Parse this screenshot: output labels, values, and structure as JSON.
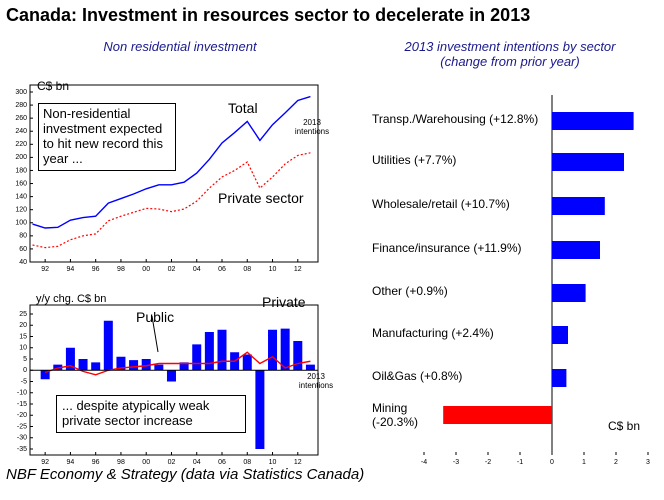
{
  "title": "Canada: Investment in resources sector to decelerate in 2013",
  "source": "NBF Economy & Strategy (data via Statistics Canada)",
  "chart_data": [
    {
      "type": "line",
      "subtitle": "Non residential investment",
      "ylabel": "C$ bn",
      "x": [
        1991,
        1992,
        1993,
        1994,
        1995,
        1996,
        1997,
        1998,
        1999,
        2000,
        2001,
        2002,
        2003,
        2004,
        2005,
        2006,
        2007,
        2008,
        2009,
        2010,
        2011,
        2012,
        2013
      ],
      "series": [
        {
          "name": "Total",
          "color": "#0000ff",
          "style": "solid",
          "values": [
            98,
            92,
            93,
            104,
            108,
            110,
            130,
            137,
            144,
            152,
            158,
            158,
            162,
            176,
            197,
            222,
            238,
            255,
            226,
            250,
            268,
            287,
            293
          ]
        },
        {
          "name": "Private sector",
          "color": "#ff0000",
          "style": "dotted",
          "values": [
            66,
            62,
            64,
            74,
            80,
            83,
            103,
            110,
            116,
            122,
            121,
            117,
            121,
            133,
            153,
            170,
            180,
            193,
            153,
            170,
            190,
            203,
            207
          ]
        }
      ],
      "annotations": [
        "Non-residential investment expected to hit new record this year ...",
        "2013\nintentions"
      ],
      "xlim": [
        1990.8,
        2013.6
      ],
      "ylim": [
        40,
        300
      ],
      "xticks": [
        {
          "value": 1992,
          "label": "92"
        },
        {
          "value": 1994,
          "label": "94"
        },
        {
          "value": 1996,
          "label": "96"
        },
        {
          "value": 1998,
          "label": "98"
        },
        {
          "value": 2000,
          "label": "00"
        },
        {
          "value": 2002,
          "label": "02"
        },
        {
          "value": 2004,
          "label": "04"
        },
        {
          "value": 2006,
          "label": "06"
        },
        {
          "value": 2008,
          "label": "08"
        },
        {
          "value": 2010,
          "label": "10"
        },
        {
          "value": 2012,
          "label": "12"
        }
      ],
      "yticks": [
        40,
        60,
        80,
        100,
        120,
        140,
        160,
        180,
        200,
        220,
        240,
        260,
        280,
        300
      ]
    },
    {
      "type": "combo",
      "ylabel": "y/y chg. C$ bn",
      "x": [
        1992,
        1993,
        1994,
        1995,
        1996,
        1997,
        1998,
        1999,
        2000,
        2001,
        2002,
        2003,
        2004,
        2005,
        2006,
        2007,
        2008,
        2009,
        2010,
        2011,
        2012,
        2013
      ],
      "series": [
        {
          "name": "Private",
          "color": "#0000ff",
          "kind": "bar",
          "values": [
            -4,
            2.5,
            10,
            5,
            3.5,
            22,
            6,
            4.5,
            5,
            2.5,
            -5,
            3.5,
            11.5,
            17,
            18,
            8,
            7,
            -35,
            18,
            18.5,
            13,
            2.5
          ]
        },
        {
          "name": "Public",
          "color": "#ff0000",
          "kind": "line",
          "values": [
            -1,
            1,
            2,
            -0.5,
            -2,
            0,
            1,
            1.5,
            2,
            3,
            3,
            3,
            3,
            3,
            4,
            4,
            8,
            3,
            6,
            1,
            3,
            4
          ]
        }
      ],
      "annotations": [
        "2013\nintentions",
        "... despite atypically weak private sector increase"
      ],
      "xlim": [
        1990.8,
        2013.6
      ],
      "ylim": [
        -35,
        25
      ],
      "xticks": [
        {
          "value": 1992,
          "label": "92"
        },
        {
          "value": 1994,
          "label": "94"
        },
        {
          "value": 1996,
          "label": "96"
        },
        {
          "value": 1998,
          "label": "98"
        },
        {
          "value": 2000,
          "label": "00"
        },
        {
          "value": 2002,
          "label": "02"
        },
        {
          "value": 2004,
          "label": "04"
        },
        {
          "value": 2006,
          "label": "06"
        },
        {
          "value": 2008,
          "label": "08"
        },
        {
          "value": 2010,
          "label": "10"
        },
        {
          "value": 2012,
          "label": "12"
        }
      ],
      "yticks": [
        -35,
        -30,
        -25,
        -20,
        -15,
        -10,
        -5,
        0,
        5,
        10,
        15,
        20,
        25
      ]
    },
    {
      "type": "hbar",
      "subtitle": "2013 investment intentions by sector\n(change from prior year)",
      "xlabel": "C$ bn",
      "categories": [
        "Transp./Warehousing (+12.8%)",
        "Utilities (+7.7%)",
        "Wholesale/retail (+10.7%)",
        "Finance/insurance (+11.9%)",
        "Other (+0.9%)",
        "Manufacturing (+2.4%)",
        "Oil&Gas (+0.8%)",
        "Mining\n(-20.3%)"
      ],
      "values": [
        2.55,
        2.25,
        1.65,
        1.5,
        1.05,
        0.5,
        0.45,
        -3.4
      ],
      "colors": [
        "#0000ff",
        "#0000ff",
        "#0000ff",
        "#0000ff",
        "#0000ff",
        "#0000ff",
        "#0000ff",
        "#ff0000"
      ],
      "xlim": [
        -4,
        3
      ],
      "xticks": [
        -4,
        -3,
        -2,
        -1,
        0,
        1,
        2,
        3
      ]
    }
  ]
}
